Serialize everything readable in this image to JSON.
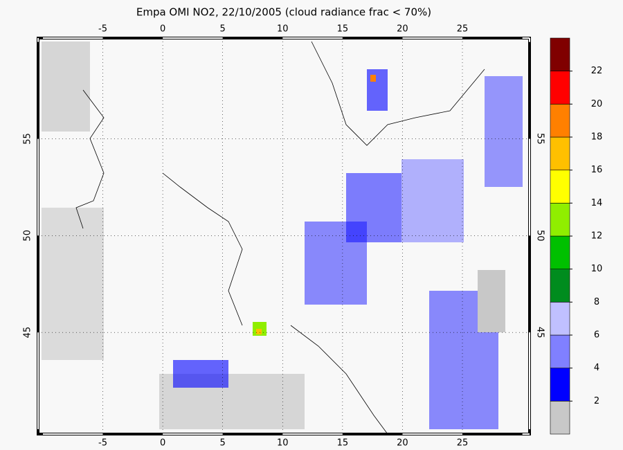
{
  "title": "Empa OMI NO2, 22/10/2005 (cloud radiance frac < 70%)",
  "map": {
    "lonlim": [
      -10.4,
      30.6
    ],
    "latlim": [
      39.75,
      60.2
    ],
    "lon_ticks": [
      -5,
      0,
      5,
      10,
      15,
      20,
      25
    ],
    "lat_ticks": [
      45,
      50,
      55
    ]
  },
  "colorbar": {
    "levels": [
      0,
      2,
      4,
      6,
      8,
      10,
      12,
      14,
      16,
      18,
      20,
      22,
      24
    ],
    "labels": [
      2,
      4,
      6,
      8,
      10,
      12,
      14,
      16,
      18,
      20,
      22
    ],
    "colors": [
      "#c8c8c8",
      "#0000ff",
      "#8080ff",
      "#c0c0ff",
      "#008c1e",
      "#00c000",
      "#90ee00",
      "#ffff00",
      "#ffc000",
      "#ff8000",
      "#ff0000",
      "#800000"
    ]
  }
}
